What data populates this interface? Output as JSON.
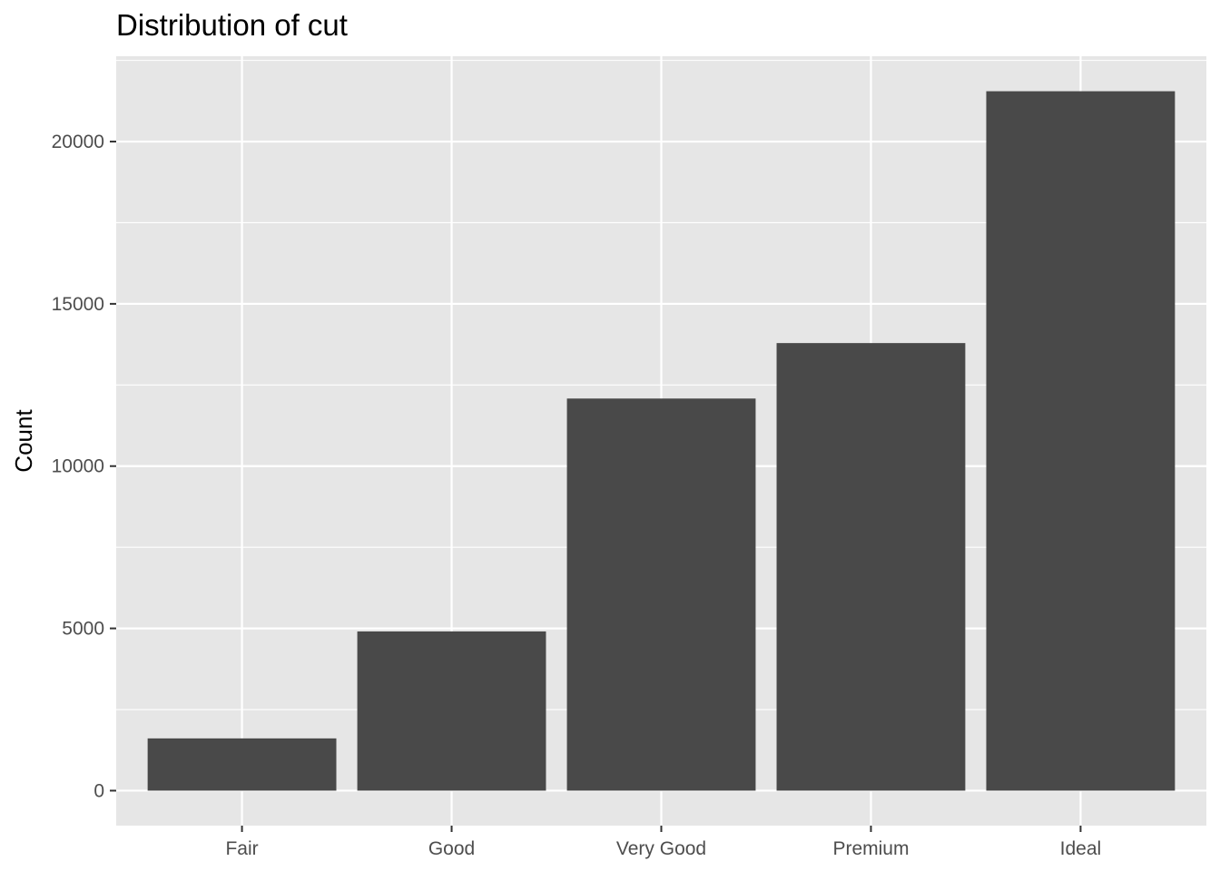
{
  "chart_data": {
    "type": "bar",
    "title": "Distribution of cut",
    "xlabel": "",
    "ylabel": "Count",
    "categories": [
      "Fair",
      "Good",
      "Very Good",
      "Premium",
      "Ideal"
    ],
    "values": [
      1610,
      4906,
      12082,
      13791,
      21551
    ],
    "ylim": [
      -1078,
      22629
    ],
    "yticks": [
      0,
      5000,
      10000,
      15000,
      20000
    ],
    "ytick_labels": [
      "0",
      "5000",
      "10000",
      "15000",
      "20000"
    ],
    "grid": true,
    "legend": "none",
    "colors": {
      "bar": "#494949",
      "panel": "#e6e6e6",
      "grid": "#ffffff",
      "tick_text": "#4d4d4d",
      "tick_mark": "#333333"
    }
  }
}
